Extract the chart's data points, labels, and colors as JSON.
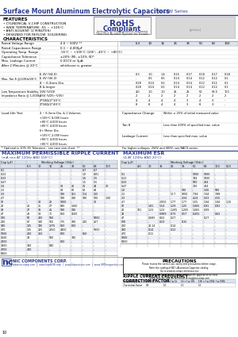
{
  "title_bold": "Surface Mount Aluminum Electrolytic Capacitors",
  "title_series": " NACEW Series",
  "features_title": "FEATURES",
  "features": [
    "• CYLINDRICAL V-CHIP CONSTRUCTION",
    "• WIDE TEMPERATURE -55 ~ +105°C",
    "• ANTI-SOLVENT (2 MINUTES)",
    "• DESIGNED FOR REFLOW  SOLDERING"
  ],
  "char_title": "CHARACTERISTICS",
  "rohs_line1": "RoHS",
  "rohs_line2": "Compliant",
  "rohs_sub1": "Includes all homogeneous materials",
  "rohs_sub2": "*See Part Number System for Details",
  "char_left_rows": [
    [
      "Rated Voltage Range",
      "4.0 ~ 500V **"
    ],
    [
      "Rated Capacitance Range",
      "0.1 ~ 4,000μF"
    ],
    [
      "Operating Temp. Range",
      "-55°C ~ +105°C (105°, -40°C ~ +85°C)"
    ],
    [
      "Capacitance Tolerance",
      "±20% (M), ±10% (K)*"
    ],
    [
      "Max. Leakage Current",
      "0.01CV or 3μA,"
    ],
    [
      "After 2 Minutes @ 20°C",
      "whichever is greater"
    ],
    [
      "",
      ""
    ]
  ],
  "tan_label": "Max. Tan δ @120Hz/20°C",
  "tan_subrows": [
    [
      "",
      "6.3V (V4.0)",
      "0.3",
      "1.0",
      "1.4",
      "0.15",
      "0.17",
      "0.18",
      "0.17",
      "0.18"
    ],
    [
      "",
      "6.3V (V6.3)",
      "0",
      "0.5",
      "0.5",
      "0.14",
      "0.14",
      "0.12",
      "0.12",
      "0.10"
    ],
    [
      "",
      "4 ~ 6.3mm Dia.",
      "0.28",
      "0.24",
      "0.20",
      "0.14",
      "0.14",
      "0.12",
      "0.12",
      "0.10"
    ],
    [
      "",
      "8 & larger",
      "0.28",
      "0.24",
      "0.20",
      "0.14",
      "0.14",
      "0.12",
      "0.12",
      "0.10"
    ]
  ],
  "lts_label": "Low Temperature Stability\nImpedance Ratio @ 1,000hz",
  "lts_rows": [
    [
      "",
      "10V (V10)",
      "4.0",
      "1.0",
      "1.0",
      "25",
      "25",
      "50",
      "53.5",
      "100"
    ],
    [
      "",
      "25V (V25~V35)",
      "2",
      "2",
      "2",
      "2",
      "2",
      "2",
      "2",
      "2"
    ],
    [
      "",
      "2*50Ω/2*10°C",
      "4",
      "4",
      "4",
      "4",
      "3",
      "4",
      "3",
      "-"
    ],
    [
      "",
      "2*50Ω/2*40°C",
      "8",
      "8",
      "4",
      "4",
      "3",
      "8",
      "3",
      "-"
    ]
  ],
  "load_label": "Load Life Test",
  "load_left": [
    "4 ~ 6.3mm Dia. & 1 Volumes",
    "+105°C 8,000 hours",
    "+85°C 4,000 hours",
    "+85°C 4,000 hours",
    "6+ Meter Dia.",
    "+105°C 2,000 hours",
    "+85°C 4,000 hours",
    "+85°C 4,000 hours"
  ],
  "cap_change_label": "Capacitance Change",
  "cap_change_value": "Within ± 25% of initial measured value",
  "tan_d_label": "Tan δ",
  "tan_d_value": "Less than 200% of specified max. value",
  "leak_label": "Leakage Current",
  "leak_value": "Less than specified max. value",
  "footnote1": "* Optional is 10% (K) Tolerance - see case size chart  **",
  "footnote2": "For higher voltages, 250V and 400V, see NACX series.",
  "ripple_title": "MAXIMUM PERMISSIBLE RIPPLE CURRENT",
  "ripple_sub": "(mA rms AT 120Hz AND 105°C)",
  "esr_title": "MAXIMUM ESR",
  "esr_sub": "(Ω AT 120Hz AND 20°C)",
  "table_left_headers": [
    "Cap (μF)",
    "Working Voltage (V/dc)",
    "",
    "",
    "",
    "",
    "",
    "",
    "",
    ""
  ],
  "table_left_headers2": [
    "",
    "6.3",
    "10",
    "16",
    "25",
    "35",
    "50",
    "63",
    "100",
    ""
  ],
  "ripple_cap_col": [
    "0.1",
    "0.22",
    "0.33",
    "0.47",
    "1.0",
    "2.2",
    "3.3",
    "4.7",
    "10",
    "22",
    "33",
    "47",
    "100",
    "220",
    "330",
    "470",
    "1000",
    "1500",
    "2200",
    "3300",
    "4700",
    "6800"
  ],
  "ripple_wv_col": [
    "-",
    "-",
    "-",
    "-",
    "-",
    "-",
    "-",
    "-",
    "-",
    "-",
    "-",
    "-",
    "-",
    "-",
    "-",
    "-",
    "-",
    "-",
    "-",
    "-",
    "-",
    "-"
  ],
  "ripple_cols": [
    [
      "-",
      "-",
      "-",
      "-",
      "-",
      "-",
      "-",
      "-",
      "-",
      "20",
      "27",
      "40",
      "50",
      "67",
      "135",
      "135",
      "200",
      "33",
      "-",
      "330",
      "400",
      "-"
    ],
    [
      "-",
      "-",
      "-",
      "-",
      "-",
      "-",
      "-",
      "-",
      "14",
      "25",
      "38",
      "54",
      "400",
      "140",
      "195",
      "205",
      "350",
      "-",
      "-",
      "-",
      "-",
      "-"
    ],
    [
      "-",
      "-",
      "-",
      "-",
      "-",
      "-",
      "-",
      "-",
      "20",
      "27",
      "41",
      "75",
      "560",
      "165",
      "1375",
      "2050",
      "-",
      "500",
      "-",
      "840",
      "-",
      "-"
    ],
    [
      "-",
      "-",
      "-",
      "-",
      "14",
      "34",
      "100",
      "190",
      "1000",
      "640",
      "180",
      "860",
      "-",
      "175",
      "800",
      "4400",
      "800",
      "-",
      "800",
      "-",
      "-",
      "-"
    ],
    [
      "-",
      "-",
      "-",
      "-",
      "20",
      "60",
      "151",
      "190",
      "-",
      "1300",
      "190",
      "1500",
      "-",
      "180",
      "800",
      "-",
      "-",
      "740",
      "-",
      "-",
      "-",
      "-"
    ],
    [
      "0.7",
      "1.0",
      "1.6",
      "1.5",
      "21",
      "62",
      "114",
      "180",
      "-",
      "-",
      "-",
      "-",
      "-",
      "200",
      "-",
      "-",
      "850",
      "-",
      "-",
      "-",
      "-",
      "-"
    ],
    [
      "0.7",
      "0.81",
      "2.5",
      "5.5",
      "24",
      "64",
      "135",
      "100",
      "30",
      "-",
      "-",
      "-",
      "5000",
      "267",
      "-",
      "5000",
      "-",
      "-",
      "-",
      "-",
      "-",
      "-"
    ],
    [
      "-",
      "-",
      "-",
      "-",
      "30",
      "-",
      "-",
      "1.00",
      "-",
      "-",
      "-",
      "-",
      "-",
      "-",
      "-",
      "-",
      "-",
      "-",
      "-",
      "-",
      "-",
      "-"
    ]
  ],
  "esr_cap_col": [
    "0.1",
    "0.22",
    "0.33",
    "0.47",
    "1.0",
    "2.2",
    "3.3",
    "4.7",
    "10",
    "22",
    "33",
    "47",
    "100",
    "220",
    "330",
    "470",
    "1000",
    "6800"
  ],
  "esr_cols": [
    [
      "-",
      "-",
      "-",
      "-",
      "-",
      "-",
      "-",
      "-",
      "-",
      "101",
      "-",
      "-",
      "-",
      "-",
      "-",
      "-",
      "-",
      "-"
    ],
    [
      "-",
      "-",
      "-",
      "-",
      "-",
      "-",
      "-",
      "-",
      "1.81",
      "1.23",
      "-",
      "0.685",
      "-",
      "20.14",
      "0.14",
      "0.11",
      "-",
      "-"
    ],
    [
      "-",
      "-",
      "-",
      "-",
      "-",
      "-",
      "-",
      "2.050",
      "1.54",
      "1.23",
      "0.989",
      "0.62",
      "0.23",
      "-",
      "-",
      "-",
      "-",
      "-"
    ],
    [
      "-",
      "-",
      "-",
      "-",
      "-",
      "12.7",
      "-",
      "1.77",
      "1.29",
      "1.205",
      "0.73",
      "0.27",
      "-",
      "0.14",
      "0.12",
      "-",
      "-",
      "-"
    ],
    [
      "-",
      "-",
      "-",
      "-",
      "100",
      "1000",
      "4.34",
      "1.77",
      "1.25",
      "1.205",
      "0.57",
      "-",
      "0.15",
      "-",
      "-",
      "-",
      "-",
      "-"
    ],
    [
      "1000",
      "744",
      "500",
      "300",
      "-",
      "7.94",
      "4.24",
      "1.55",
      "1.065",
      "1.065",
      "0.491",
      "-",
      "-",
      "-",
      "-",
      "-",
      "-",
      "-"
    ],
    [
      "1000",
      "1000",
      "404",
      "424",
      "1.00",
      "7.44",
      "5.03",
      "1.94",
      "0.91",
      "0.99",
      "-",
      "0.27",
      "-",
      "-",
      "-",
      "-",
      "-",
      "-"
    ],
    [
      "-",
      "-",
      "-",
      "-",
      "500",
      "7.88",
      "4.15",
      "1.94",
      "0.91",
      "-",
      "0.62",
      "-",
      "-",
      "-",
      "-",
      "-",
      "-",
      "-"
    ],
    [
      "-",
      "-",
      "-",
      "-",
      "-",
      "-",
      "-",
      "1.10",
      "-",
      "-",
      "-",
      "-",
      "-",
      "-",
      "-",
      "-",
      "-",
      "-"
    ]
  ],
  "esr_volt_headers": [
    "Cap (μF)",
    "4.0",
    "10",
    "16",
    "25",
    "35",
    "50",
    "63",
    "100",
    "500"
  ],
  "precautions_title": "PRECAUTIONS",
  "precautions_text": "Please review the correct use, safety and precautions before usage. Refer the\ncatalog of NIC's Aluminum Capacitor catalog.\nGo to www.niccomp.com/resources\nIf a doubt or wrong use occurs, enter your specific application or cross levels with\nNIC and we will assist at eng@niccomp.com",
  "ripple_freq_title": "RIPPLE CURRENT FREQUENCY\nCORRECTION FACTOR",
  "freq_row1": [
    "Frequency (Hz)",
    "f ≤ 100",
    "100 < f ≤ 1k",
    "1k < f ≤ 10k",
    "10k < f ≤ 100k",
    "f ≥ 100k"
  ],
  "freq_row2": [
    "Correction Factor",
    "0.8",
    "1.0",
    "1.3",
    "1.5",
    ""
  ],
  "bg_color": "#ffffff",
  "blue_color": "#2b3a8f",
  "dark_blue": "#1a237e",
  "gray_line": "#aaaaaa",
  "light_blue_bg": "#dce4f0",
  "alt_row_bg": "#eef1f8"
}
